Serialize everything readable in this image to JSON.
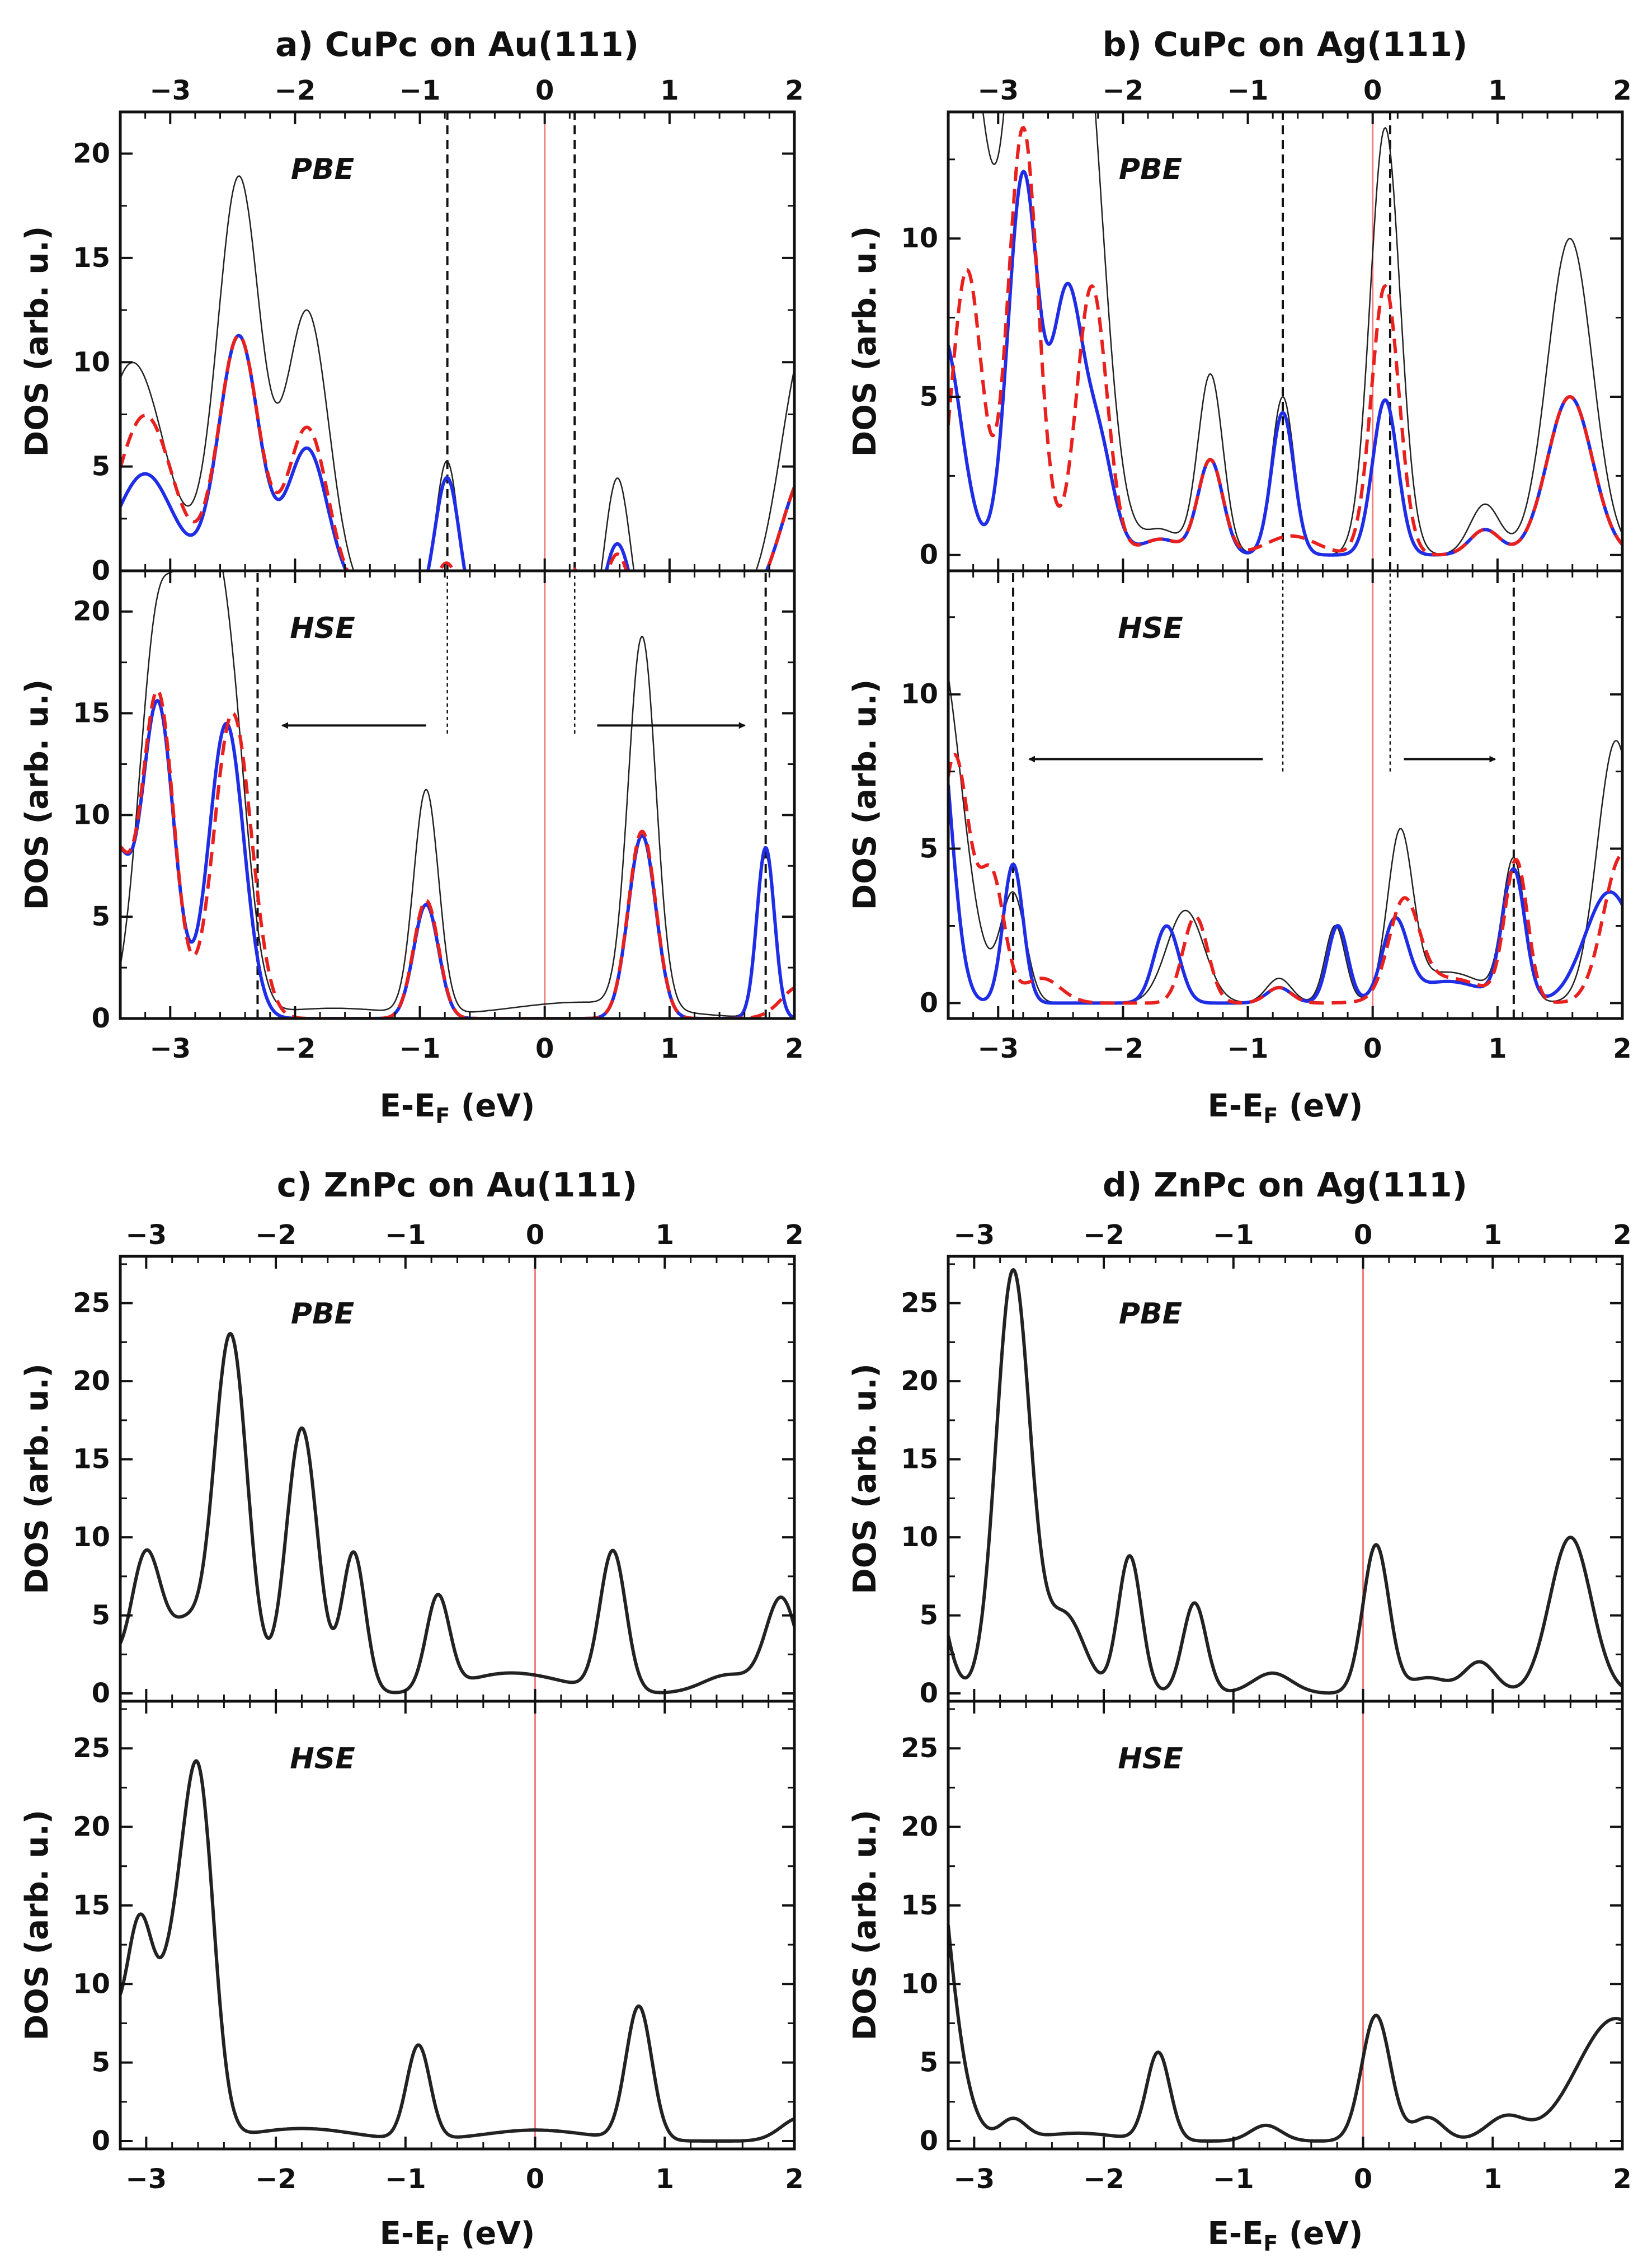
{
  "colors": {
    "total": "#222222",
    "spin_up": "#1f2ee6",
    "spin_down": "#e8201e",
    "fermi": "#f07f7f",
    "frame": "#111111"
  },
  "axis_labels": {
    "ylabel": "DOS (arb. u.)",
    "xlabel_main": "E-E",
    "xlabel_sub": "F",
    "xlabel_unit": " (eV)"
  },
  "chart_data": [
    {
      "id": "a",
      "type": "line",
      "title": "a) CuPc on Au(111)",
      "xlim": [
        -3.4,
        2.0
      ],
      "xticks": [
        -3,
        -2,
        -1,
        0,
        1,
        2
      ],
      "xtick_labels": [
        "−3",
        "−2",
        "−1",
        "0",
        "1",
        "2"
      ],
      "ylim": [
        0,
        22
      ],
      "yticks": [
        0,
        5,
        10,
        15,
        20
      ],
      "ytick_labels": [
        "0",
        "5",
        "10",
        "15",
        "20"
      ],
      "fermi": 0,
      "top": {
        "method": "PBE",
        "vlines": [
          {
            "x": -0.78,
            "style": "dashed"
          },
          {
            "x": 0.24,
            "style": "dashed"
          }
        ],
        "series": [
          {
            "name": "total",
            "peaks": [
              [
                0.15,
                -5,
                1
              ],
              [
                -3.3,
                10,
                0.25
              ],
              [
                -2.45,
                19,
                0.17
              ],
              [
                -1.9,
                13,
                0.17
              ],
              [
                -0.78,
                8.5,
                0.1
              ],
              [
                0.22,
                3,
                0.1
              ],
              [
                0.58,
                9,
                0.11
              ],
              [
                2.1,
                12,
                0.2
              ]
            ]
          },
          {
            "name": "spin_up",
            "peaks": [
              [
                0.3,
                -3.5,
                1.2
              ],
              [
                -3.2,
                4.7,
                0.22
              ],
              [
                -2.45,
                11.5,
                0.16
              ],
              [
                -1.9,
                6.5,
                0.16
              ],
              [
                -0.78,
                6.8,
                0.1
              ],
              [
                0.58,
                4.7,
                0.11
              ],
              [
                2.1,
                6,
                0.2
              ]
            ]
          },
          {
            "name": "spin_down",
            "peaks": [
              [
                0.3,
                -3.5,
                1.2
              ],
              [
                -3.2,
                7.5,
                0.22
              ],
              [
                -2.45,
                11.5,
                0.16
              ],
              [
                -1.9,
                7.5,
                0.16
              ],
              [
                -0.78,
                2.7,
                0.1
              ],
              [
                0.22,
                3.6,
                0.1
              ],
              [
                0.58,
                4.2,
                0.11
              ],
              [
                2.1,
                6,
                0.2
              ]
            ]
          }
        ]
      },
      "bottom": {
        "method": "HSE",
        "vlines": [
          {
            "x": -2.3,
            "style": "dashed"
          },
          {
            "x": 1.77,
            "style": "dashed"
          },
          {
            "x": -0.78,
            "style": "dotted",
            "y0": 14,
            "y1": 22
          },
          {
            "x": 0.24,
            "style": "dotted",
            "y0": 14,
            "y1": 22
          }
        ],
        "arrows": [
          {
            "from": -0.95,
            "to": -2.1,
            "y": 14.4
          },
          {
            "from": 0.42,
            "to": 1.6,
            "y": 14.4
          }
        ],
        "series": [
          {
            "name": "total",
            "peaks": [
              [
                -0.95,
                11,
                0.1
              ],
              [
                0.78,
                18.2,
                0.11
              ],
              [
                1.77,
                8,
                0.07
              ],
              [
                -3.1,
                19,
                0.15
              ],
              [
                -2.8,
                18,
                0.14
              ],
              [
                -2.55,
                17,
                0.15
              ],
              [
                -1.7,
                0.5,
                0.5
              ],
              [
                0.3,
                0.8,
                0.6
              ]
            ]
          },
          {
            "name": "spin_up",
            "peaks": [
              [
                -3.1,
                15.5,
                0.13
              ],
              [
                -2.55,
                14.5,
                0.14
              ],
              [
                -3.45,
                8,
                0.12
              ],
              [
                -0.95,
                5.6,
                0.1
              ],
              [
                0.78,
                9,
                0.11
              ],
              [
                1.77,
                8.4,
                0.07
              ]
            ]
          },
          {
            "name": "spin_down",
            "peaks": [
              [
                -3.1,
                16,
                0.13
              ],
              [
                -2.5,
                15,
                0.15
              ],
              [
                -3.45,
                8,
                0.12
              ],
              [
                -0.95,
                5.8,
                0.1
              ],
              [
                0.78,
                9.2,
                0.11
              ],
              [
                2.05,
                1.6,
                0.15
              ]
            ]
          }
        ]
      }
    },
    {
      "id": "b",
      "type": "line",
      "title": "b) CuPc on Ag(111)",
      "xlim": [
        -3.4,
        2.0
      ],
      "xticks": [
        -3,
        -2,
        -1,
        0,
        1,
        2
      ],
      "xtick_labels": [
        "−3",
        "−2",
        "−1",
        "0",
        "1",
        "2"
      ],
      "ylim": [
        -0.5,
        14
      ],
      "yticks": [
        0,
        5,
        10
      ],
      "ytick_labels": [
        "0",
        "5",
        "10"
      ],
      "fermi": 0,
      "top": {
        "method": "PBE",
        "vlines": [
          {
            "x": -0.72,
            "style": "dashed"
          },
          {
            "x": 0.14,
            "style": "dashed"
          }
        ],
        "series": [
          {
            "name": "total",
            "peaks": [
              [
                -3.3,
                18,
                0.22
              ],
              [
                -2.75,
                22,
                0.15
              ],
              [
                -2.35,
                18,
                0.18
              ],
              [
                -1.3,
                5.7,
                0.1
              ],
              [
                -0.72,
                5,
                0.09
              ],
              [
                0.1,
                13.5,
                0.12
              ],
              [
                0.9,
                1.6,
                0.12
              ],
              [
                1.58,
                10,
                0.18
              ],
              [
                -1.7,
                0.8,
                0.15
              ]
            ]
          },
          {
            "name": "spin_up",
            "peaks": [
              [
                -3.45,
                7,
                0.15
              ],
              [
                -2.8,
                12,
                0.12
              ],
              [
                -2.45,
                8,
                0.12
              ],
              [
                -2.2,
                3.5,
                0.12
              ],
              [
                -1.3,
                3,
                0.1
              ],
              [
                -0.72,
                4.5,
                0.09
              ],
              [
                0.1,
                4.9,
                0.1
              ],
              [
                0.9,
                0.8,
                0.12
              ],
              [
                1.58,
                5,
                0.18
              ],
              [
                -1.7,
                0.5,
                0.15
              ]
            ]
          },
          {
            "name": "spin_down",
            "peaks": [
              [
                -3.25,
                9,
                0.12
              ],
              [
                -2.8,
                13.5,
                0.12
              ],
              [
                -2.25,
                8.5,
                0.12
              ],
              [
                -1.3,
                3,
                0.1
              ],
              [
                -0.65,
                0.6,
                0.2
              ],
              [
                0.1,
                8.5,
                0.11
              ],
              [
                0.9,
                0.8,
                0.12
              ],
              [
                1.58,
                5,
                0.18
              ],
              [
                -1.7,
                0.5,
                0.15
              ]
            ]
          }
        ]
      },
      "bottom": {
        "method": "HSE",
        "vlines": [
          {
            "x": -2.88,
            "style": "dashed"
          },
          {
            "x": 1.13,
            "style": "dashed"
          },
          {
            "x": -0.72,
            "style": "dotted",
            "y0": 7.5,
            "y1": 14
          },
          {
            "x": 0.14,
            "style": "dotted",
            "y0": 7.5,
            "y1": 14
          }
        ],
        "arrows": [
          {
            "from": -0.88,
            "to": -2.75,
            "y": 7.9
          },
          {
            "from": 0.25,
            "to": 0.98,
            "y": 7.9
          }
        ],
        "series": [
          {
            "name": "total",
            "peaks": [
              [
                -3.5,
                12,
                0.2
              ],
              [
                -2.88,
                3.5,
                0.1
              ],
              [
                -1.5,
                3,
                0.15
              ],
              [
                -0.75,
                0.8,
                0.1
              ],
              [
                -0.3,
                2.5,
                0.08
              ],
              [
                0.22,
                5.2,
                0.1
              ],
              [
                1.13,
                4.5,
                0.09
              ],
              [
                1.95,
                8.5,
                0.15
              ],
              [
                0.6,
                1,
                0.3
              ]
            ]
          },
          {
            "name": "spin_up",
            "peaks": [
              [
                -3.5,
                10,
                0.12
              ],
              [
                -2.88,
                4.5,
                0.08
              ],
              [
                -1.65,
                2.5,
                0.1
              ],
              [
                -0.75,
                0.5,
                0.1
              ],
              [
                -0.28,
                2.5,
                0.08
              ],
              [
                0.18,
                2.5,
                0.1
              ],
              [
                1.13,
                4.2,
                0.09
              ],
              [
                1.9,
                3.6,
                0.2
              ],
              [
                0.6,
                0.7,
                0.3
              ]
            ]
          },
          {
            "name": "spin_down",
            "peaks": [
              [
                -3.35,
                8,
                0.12
              ],
              [
                -3.05,
                4,
                0.1
              ],
              [
                -2.65,
                0.8,
                0.15
              ],
              [
                -1.42,
                2.8,
                0.1
              ],
              [
                -0.75,
                0.5,
                0.1
              ],
              [
                0.25,
                3,
                0.12
              ],
              [
                1.15,
                4.5,
                0.09
              ],
              [
                2.0,
                4.8,
                0.15
              ],
              [
                0.6,
                0.8,
                0.3
              ]
            ]
          }
        ]
      }
    },
    {
      "id": "c",
      "type": "line",
      "title": "c) ZnPc on Au(111)",
      "xlim": [
        -3.2,
        2.0
      ],
      "xticks": [
        -3,
        -2,
        -1,
        0,
        1,
        2
      ],
      "xtick_labels": [
        "−3",
        "−2",
        "−1",
        "0",
        "1",
        "2"
      ],
      "ylim": [
        -0.5,
        28
      ],
      "yticks": [
        0,
        5,
        10,
        15,
        20,
        25
      ],
      "ytick_labels": [
        "0",
        "5",
        "10",
        "15",
        "20",
        "25"
      ],
      "fermi": 0,
      "top": {
        "method": "PBE",
        "vlines": [],
        "series": [
          {
            "name": "total",
            "peaks": [
              [
                -3.35,
                3,
                0.1
              ],
              [
                -3.0,
                9,
                0.12
              ],
              [
                -2.35,
                23,
                0.13
              ],
              [
                -1.8,
                17,
                0.12
              ],
              [
                -1.4,
                9,
                0.09
              ],
              [
                -0.75,
                6,
                0.09
              ],
              [
                -0.3,
                1,
                0.3
              ],
              [
                0.6,
                9,
                0.1
              ],
              [
                1.9,
                6,
                0.12
              ],
              [
                -2.7,
                4,
                0.12
              ],
              [
                0.1,
                0.6,
                0.3
              ],
              [
                1.5,
                1.2,
                0.2
              ]
            ]
          }
        ]
      },
      "bottom": {
        "method": "HSE",
        "vlines": [],
        "series": [
          {
            "name": "total",
            "peaks": [
              [
                -3.35,
                9,
                0.1
              ],
              [
                -3.05,
                14,
                0.12
              ],
              [
                -2.6,
                23,
                0.12
              ],
              [
                -2.8,
                7,
                0.1
              ],
              [
                -1.8,
                0.8,
                0.4
              ],
              [
                -0.9,
                6,
                0.09
              ],
              [
                0.8,
                8.5,
                0.1
              ],
              [
                2.05,
                1.5,
                0.15
              ],
              [
                0,
                0.7,
                0.4
              ]
            ]
          }
        ]
      }
    },
    {
      "id": "d",
      "type": "line",
      "title": "d) ZnPc on Ag(111)",
      "xlim": [
        -3.2,
        2.0
      ],
      "xticks": [
        -3,
        -2,
        -1,
        0,
        1,
        2
      ],
      "xtick_labels": [
        "−3",
        "−2",
        "−1",
        "0",
        "1",
        "2"
      ],
      "ylim": [
        -0.5,
        28
      ],
      "yticks": [
        0,
        5,
        10,
        15,
        20,
        25
      ],
      "ytick_labels": [
        "0",
        "5",
        "10",
        "15",
        "20",
        "25"
      ],
      "fermi": 0,
      "top": {
        "method": "PBE",
        "vlines": [],
        "series": [
          {
            "name": "total",
            "peaks": [
              [
                -3.35,
                8,
                0.12
              ],
              [
                -2.7,
                27,
                0.13
              ],
              [
                -2.3,
                5,
                0.15
              ],
              [
                -1.8,
                8.8,
                0.09
              ],
              [
                -1.3,
                5.8,
                0.09
              ],
              [
                -0.7,
                1.3,
                0.15
              ],
              [
                0.1,
                9.5,
                0.1
              ],
              [
                0.9,
                2,
                0.12
              ],
              [
                1.6,
                10,
                0.16
              ],
              [
                0.5,
                1,
                0.15
              ]
            ]
          }
        ]
      },
      "bottom": {
        "method": "HSE",
        "vlines": [],
        "series": [
          {
            "name": "total",
            "peaks": [
              [
                -3.45,
                30,
                0.2
              ],
              [
                -2.7,
                1.3,
                0.1
              ],
              [
                -1.58,
                5.6,
                0.09
              ],
              [
                -0.75,
                1,
                0.12
              ],
              [
                0.1,
                8,
                0.11
              ],
              [
                0.5,
                1.5,
                0.12
              ],
              [
                1.1,
                1.5,
                0.15
              ],
              [
                1.95,
                7.8,
                0.3
              ],
              [
                -2.2,
                0.5,
                0.3
              ]
            ]
          }
        ]
      }
    }
  ]
}
